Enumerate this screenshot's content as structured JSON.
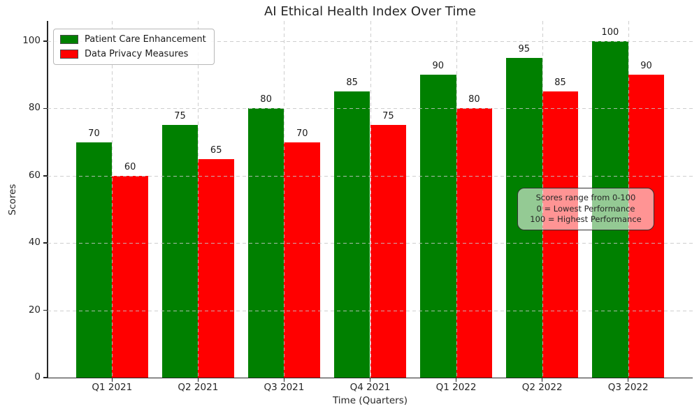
{
  "title": "AI Ethical Health Index Over Time",
  "chart_data": {
    "type": "bar",
    "title": "AI Ethical Health Index Over Time",
    "categories": [
      "Q1 2021",
      "Q2 2021",
      "Q3 2021",
      "Q4 2021",
      "Q1 2022",
      "Q2 2022",
      "Q3 2022"
    ],
    "series": [
      {
        "name": "Patient Care Enhancement",
        "color": "#008000",
        "values": [
          70,
          75,
          80,
          85,
          90,
          95,
          100
        ]
      },
      {
        "name": "Data Privacy Measures",
        "color": "#ff0000",
        "values": [
          60,
          65,
          70,
          75,
          80,
          85,
          90
        ]
      }
    ],
    "xlabel": "Time (Quarters)",
    "ylabel": "Scores",
    "ylim": [
      0,
      105
    ],
    "yticks": [
      0,
      20,
      40,
      60,
      80,
      100
    ],
    "grid": "dashed-both-axes",
    "legend_position": "upper left",
    "bar_value_labels": true
  },
  "annotation": {
    "lines": [
      "Scores range from 0-100",
      "0 = Lowest Performance",
      "100 = Highest Performance"
    ]
  }
}
